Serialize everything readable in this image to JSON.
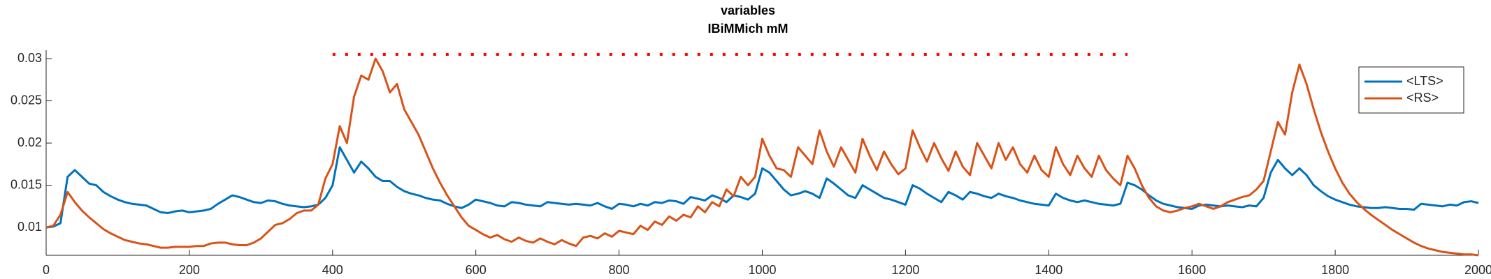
{
  "chart_data": {
    "type": "line",
    "title": "variables",
    "subtitle": "IBiMMich mM",
    "x": [
      0,
      10,
      20,
      30,
      40,
      50,
      60,
      70,
      80,
      90,
      100,
      110,
      120,
      130,
      140,
      150,
      160,
      170,
      180,
      190,
      200,
      210,
      220,
      230,
      240,
      250,
      260,
      270,
      280,
      290,
      300,
      310,
      320,
      330,
      340,
      350,
      360,
      370,
      380,
      390,
      400,
      410,
      420,
      430,
      440,
      450,
      460,
      470,
      480,
      490,
      500,
      510,
      520,
      530,
      540,
      550,
      560,
      570,
      580,
      590,
      600,
      610,
      620,
      630,
      640,
      650,
      660,
      670,
      680,
      690,
      700,
      710,
      720,
      730,
      740,
      750,
      760,
      770,
      780,
      790,
      800,
      810,
      820,
      830,
      840,
      850,
      860,
      870,
      880,
      890,
      900,
      910,
      920,
      930,
      940,
      950,
      960,
      970,
      980,
      990,
      1000,
      1010,
      1020,
      1030,
      1040,
      1050,
      1060,
      1070,
      1080,
      1090,
      1100,
      1110,
      1120,
      1130,
      1140,
      1150,
      1160,
      1170,
      1180,
      1190,
      1200,
      1210,
      1220,
      1230,
      1240,
      1250,
      1260,
      1270,
      1280,
      1290,
      1300,
      1310,
      1320,
      1330,
      1340,
      1350,
      1360,
      1370,
      1380,
      1390,
      1400,
      1410,
      1420,
      1430,
      1440,
      1450,
      1460,
      1470,
      1480,
      1490,
      1500,
      1510,
      1520,
      1530,
      1540,
      1550,
      1560,
      1570,
      1580,
      1590,
      1600,
      1610,
      1620,
      1630,
      1640,
      1650,
      1660,
      1670,
      1680,
      1690,
      1700,
      1710,
      1720,
      1730,
      1740,
      1750,
      1760,
      1770,
      1780,
      1790,
      1800,
      1810,
      1820,
      1830,
      1840,
      1850,
      1860,
      1870,
      1880,
      1890,
      1900,
      1910,
      1920,
      1930,
      1940,
      1950,
      1960,
      1970,
      1980,
      1990,
      2000
    ],
    "series": [
      {
        "name": "<LTS>",
        "color": "#0072bd",
        "values": [
          0.01,
          0.0101,
          0.0105,
          0.016,
          0.0168,
          0.016,
          0.0152,
          0.015,
          0.0142,
          0.0137,
          0.0133,
          0.013,
          0.0128,
          0.0127,
          0.0126,
          0.0122,
          0.0118,
          0.0117,
          0.0119,
          0.012,
          0.0118,
          0.0119,
          0.012,
          0.0122,
          0.0128,
          0.0133,
          0.0138,
          0.0136,
          0.0133,
          0.013,
          0.0129,
          0.0132,
          0.0131,
          0.0128,
          0.0126,
          0.0125,
          0.0124,
          0.0125,
          0.0127,
          0.0135,
          0.015,
          0.0195,
          0.018,
          0.0165,
          0.0178,
          0.017,
          0.016,
          0.0155,
          0.0155,
          0.0148,
          0.0143,
          0.014,
          0.0138,
          0.0135,
          0.0133,
          0.0132,
          0.0128,
          0.0125,
          0.0123,
          0.0127,
          0.0133,
          0.0131,
          0.0129,
          0.0126,
          0.0125,
          0.013,
          0.0129,
          0.0127,
          0.0126,
          0.0125,
          0.013,
          0.0129,
          0.0128,
          0.0127,
          0.0128,
          0.0127,
          0.0126,
          0.0129,
          0.0125,
          0.0122,
          0.0128,
          0.0127,
          0.0125,
          0.0128,
          0.0126,
          0.013,
          0.0129,
          0.0132,
          0.0131,
          0.0128,
          0.0136,
          0.0134,
          0.0132,
          0.0138,
          0.0135,
          0.013,
          0.0138,
          0.0136,
          0.0133,
          0.014,
          0.017,
          0.0165,
          0.0155,
          0.0145,
          0.0138,
          0.014,
          0.0143,
          0.014,
          0.0135,
          0.0158,
          0.0152,
          0.0145,
          0.0138,
          0.0135,
          0.015,
          0.0145,
          0.014,
          0.0135,
          0.0133,
          0.013,
          0.0127,
          0.015,
          0.0146,
          0.014,
          0.0135,
          0.013,
          0.0142,
          0.0138,
          0.0133,
          0.0142,
          0.014,
          0.0137,
          0.0135,
          0.014,
          0.0137,
          0.0135,
          0.0132,
          0.013,
          0.0128,
          0.0127,
          0.0126,
          0.014,
          0.0135,
          0.0132,
          0.013,
          0.0132,
          0.013,
          0.0128,
          0.0127,
          0.0126,
          0.0128,
          0.0153,
          0.015,
          0.0145,
          0.0138,
          0.0132,
          0.0128,
          0.0126,
          0.0124,
          0.0123,
          0.0122,
          0.0126,
          0.0127,
          0.0126,
          0.0125,
          0.0126,
          0.0125,
          0.0124,
          0.0126,
          0.0125,
          0.0135,
          0.0165,
          0.018,
          0.017,
          0.0162,
          0.017,
          0.0162,
          0.015,
          0.0143,
          0.0137,
          0.0133,
          0.013,
          0.0127,
          0.0125,
          0.0124,
          0.0123,
          0.0123,
          0.0124,
          0.0123,
          0.0122,
          0.0122,
          0.0121,
          0.0128,
          0.0127,
          0.0126,
          0.0125,
          0.0127,
          0.0126,
          0.013,
          0.0131,
          0.0129
        ]
      },
      {
        "name": "<RS>",
        "color": "#d95319",
        "values": [
          0.01,
          0.0102,
          0.0115,
          0.0142,
          0.013,
          0.012,
          0.0112,
          0.0105,
          0.0098,
          0.0093,
          0.0089,
          0.0085,
          0.0083,
          0.0081,
          0.008,
          0.0078,
          0.0076,
          0.0076,
          0.0077,
          0.0077,
          0.0077,
          0.0078,
          0.0078,
          0.0081,
          0.0082,
          0.0082,
          0.008,
          0.0079,
          0.0079,
          0.0082,
          0.0087,
          0.0095,
          0.0103,
          0.0105,
          0.011,
          0.0117,
          0.012,
          0.012,
          0.0127,
          0.0158,
          0.0175,
          0.022,
          0.02,
          0.0255,
          0.028,
          0.0275,
          0.03,
          0.0285,
          0.026,
          0.027,
          0.024,
          0.0225,
          0.021,
          0.019,
          0.017,
          0.0153,
          0.0138,
          0.0125,
          0.0112,
          0.0102,
          0.0097,
          0.0092,
          0.0088,
          0.0091,
          0.0086,
          0.0083,
          0.0088,
          0.0084,
          0.0082,
          0.0087,
          0.0083,
          0.008,
          0.0085,
          0.0081,
          0.0078,
          0.0088,
          0.009,
          0.0087,
          0.0093,
          0.0089,
          0.0096,
          0.0094,
          0.0092,
          0.0102,
          0.0097,
          0.0107,
          0.0103,
          0.0113,
          0.0108,
          0.0115,
          0.0112,
          0.0125,
          0.0118,
          0.013,
          0.0125,
          0.0145,
          0.0137,
          0.016,
          0.015,
          0.016,
          0.0205,
          0.0185,
          0.017,
          0.0168,
          0.016,
          0.0195,
          0.0185,
          0.0175,
          0.0215,
          0.019,
          0.0172,
          0.0195,
          0.018,
          0.0165,
          0.0205,
          0.0185,
          0.0168,
          0.019,
          0.0175,
          0.0163,
          0.017,
          0.0215,
          0.0195,
          0.0178,
          0.02,
          0.0182,
          0.0167,
          0.019,
          0.0172,
          0.0162,
          0.02,
          0.0185,
          0.017,
          0.02,
          0.018,
          0.0195,
          0.0175,
          0.0165,
          0.0185,
          0.0168,
          0.016,
          0.0195,
          0.0175,
          0.0162,
          0.0185,
          0.017,
          0.016,
          0.0185,
          0.0168,
          0.0158,
          0.015,
          0.0185,
          0.017,
          0.015,
          0.0135,
          0.0125,
          0.012,
          0.0118,
          0.012,
          0.0123,
          0.0125,
          0.0128,
          0.0125,
          0.0122,
          0.0125,
          0.013,
          0.0133,
          0.0136,
          0.0138,
          0.0145,
          0.0155,
          0.019,
          0.0225,
          0.021,
          0.026,
          0.0293,
          0.027,
          0.024,
          0.0213,
          0.019,
          0.017,
          0.0153,
          0.014,
          0.013,
          0.0122,
          0.0115,
          0.0109,
          0.0103,
          0.0097,
          0.0092,
          0.0087,
          0.0082,
          0.0078,
          0.0075,
          0.0073,
          0.0071,
          0.007,
          0.0069,
          0.0068,
          0.0068,
          0.0067
        ]
      },
      {
        "color": "#ff0000",
        "style": "dotted",
        "x": [
          400,
          1510
        ],
        "values": [
          0.0305,
          0.0305
        ]
      }
    ],
    "xlim": [
      0,
      2000
    ],
    "xticks": [
      0,
      200,
      400,
      600,
      800,
      1000,
      1200,
      1400,
      1600,
      1800,
      2000
    ],
    "ylim": [
      0.0067,
      0.031
    ],
    "yticks": [
      0.01,
      0.015,
      0.02,
      0.025,
      0.03
    ],
    "grid": false,
    "legend": "upper-right"
  }
}
